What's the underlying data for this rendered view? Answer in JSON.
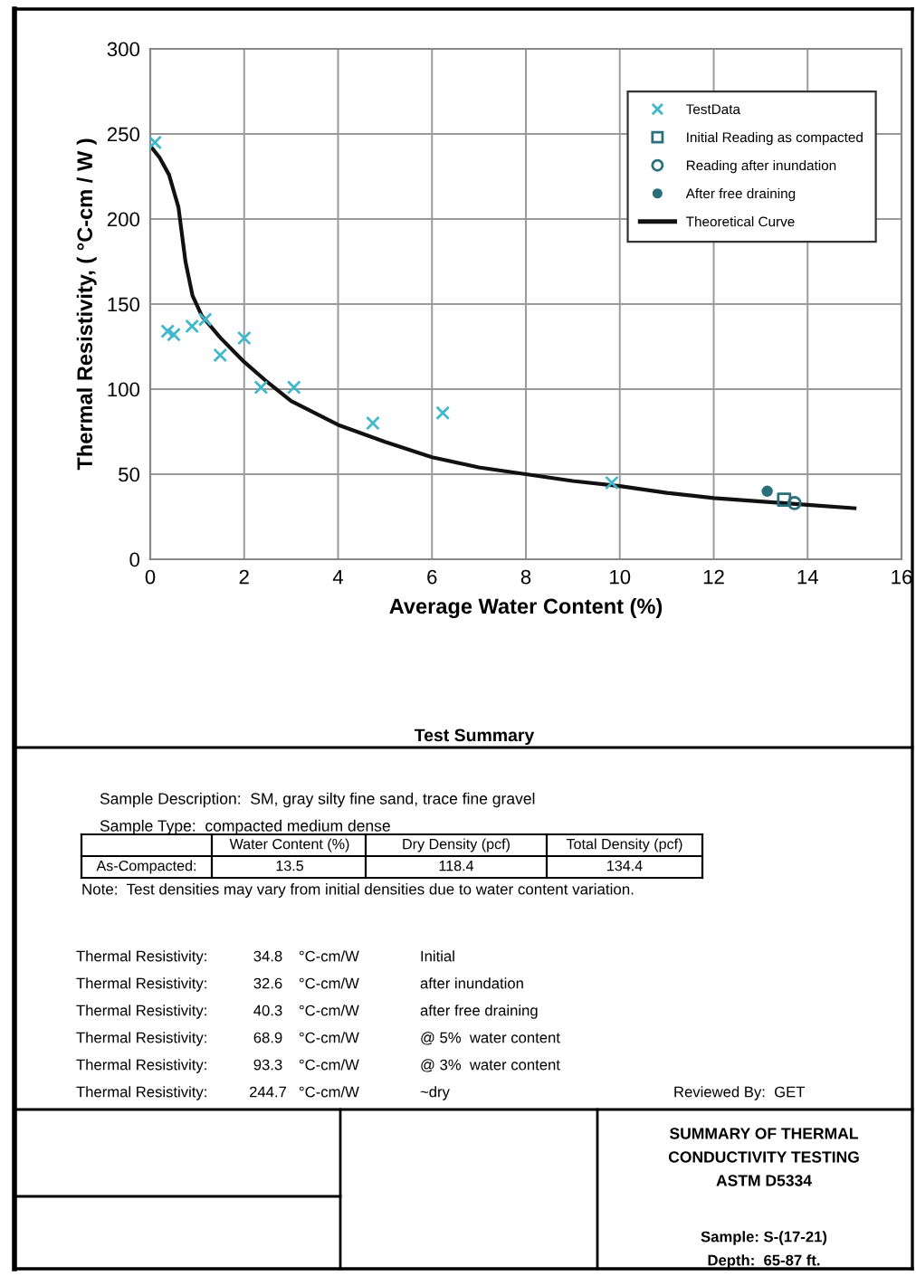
{
  "chart_data": {
    "type": "scatter",
    "xlabel": "Average Water Content (%)",
    "ylabel": "Thermal Resistivity, ( °C-cm / W )",
    "xlim": [
      0,
      16
    ],
    "xticks": [
      0,
      2,
      4,
      6,
      8,
      10,
      12,
      14,
      16
    ],
    "ylim": [
      0,
      300
    ],
    "yticks": [
      0,
      50,
      100,
      150,
      200,
      250,
      300
    ],
    "grid": true,
    "legend": "top right",
    "series": [
      {
        "name": "TestData",
        "marker": "cross",
        "color": "#40b8cc",
        "x": [
          0.1,
          0.37,
          0.5,
          0.89,
          1.17,
          1.49,
          2.0,
          2.36,
          3.06,
          4.74,
          6.23,
          9.83
        ],
        "values": [
          245,
          134,
          132,
          137,
          141,
          120,
          130,
          101,
          101,
          80,
          86,
          45
        ]
      },
      {
        "name": "Initial Reading as compacted",
        "marker": "square",
        "color": "#2a6f7a",
        "x": [
          13.5
        ],
        "values": [
          35
        ]
      },
      {
        "name": "Reading after inundation",
        "marker": "circle",
        "color": "#2a6f7a",
        "x": [
          13.72
        ],
        "values": [
          33
        ]
      },
      {
        "name": "After free draining",
        "marker": "dot",
        "color": "#2a6f7a",
        "x": [
          13.14
        ],
        "values": [
          40
        ]
      },
      {
        "name": "Theoretical Curve",
        "type": "line",
        "marker": "none",
        "color": "#111111",
        "x": [
          0,
          0.2,
          0.4,
          0.6,
          0.75,
          0.9,
          1.1,
          1.5,
          2,
          2.5,
          3,
          4,
          5,
          6,
          7,
          8,
          9,
          10,
          11,
          12,
          13,
          14,
          15
        ],
        "values": [
          243,
          236,
          226,
          207,
          175,
          155,
          143,
          130,
          116,
          104,
          93,
          79,
          69,
          60,
          54,
          50,
          46,
          43,
          39,
          36,
          34,
          32,
          30
        ]
      }
    ],
    "annotations": [
      "Test Summary",
      "Sample Description:  SM, gray silty fine sand, trace fine gravel",
      "Sample Type:  compacted medium dense",
      "Water Content (%)",
      "Dry Density (pcf)",
      "Total Density (pcf)",
      "As-Compacted:",
      "13.5",
      "118.4",
      "134.4",
      "Note:  Test densities may vary from initial densities due to water content variation.",
      "Thermal Resistivity:",
      "34.8",
      "°C-cm/W",
      "Initial",
      "Thermal Resistivity:",
      "32.6",
      "°C-cm/W",
      "after inundation",
      "Thermal Resistivity:",
      "40.3",
      "°C-cm/W",
      "after free draining",
      "Thermal Resistivity:",
      "68.9",
      "°C-cm/W",
      "@ 5%  water content",
      "Thermal Resistivity:",
      "93.3",
      "°C-cm/W",
      "@ 3%  water content",
      "Thermal Resistivity:",
      "244.7",
      "°C-cm/W",
      "~dry",
      "Reviewed By:  GET",
      "SUMMARY OF THERMAL",
      "CONDUCTIVITY TESTING",
      "ASTM D5334",
      "Sample: S-(17-21)",
      "Depth:  65-87 ft."
    ]
  }
}
